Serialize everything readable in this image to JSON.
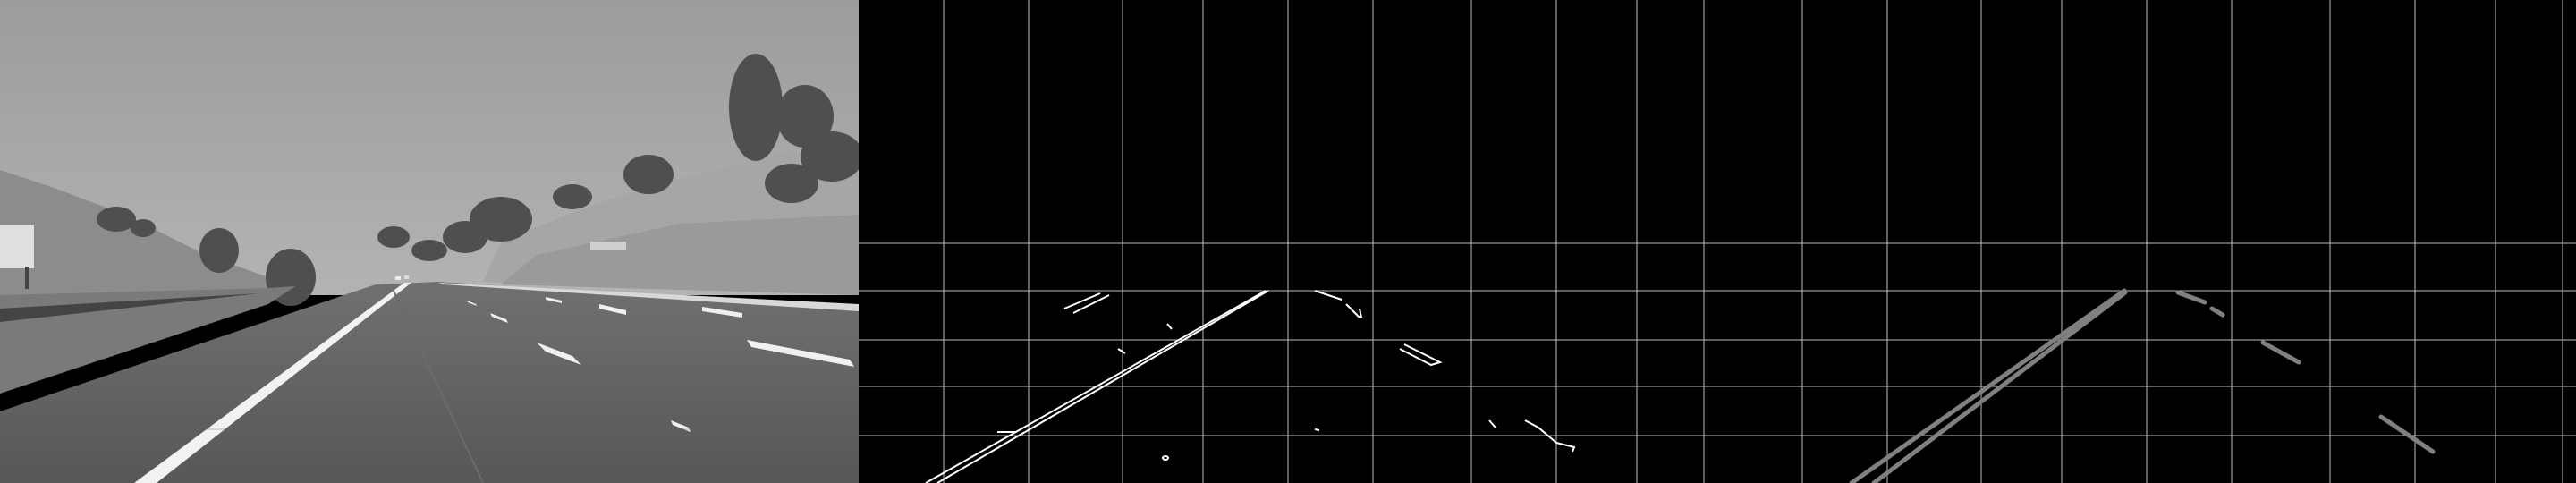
{
  "panels": [
    {
      "id": "road",
      "kind": "grayscale-photo"
    },
    {
      "id": "edges",
      "kind": "canny-edges"
    },
    {
      "id": "lines",
      "kind": "hough-lines"
    }
  ],
  "colors": {
    "sky": "#a0a0a0",
    "hill_left": "#8a8a8a",
    "hill_right": "#9e9e9e",
    "trees": "#555555",
    "road": "#5a5a5a",
    "lane_marking": "#f2f2f2",
    "grid_line": "#bdbdbd",
    "edge_stroke": "#ffffff",
    "hough_stroke": "#808080"
  },
  "grid": {
    "cells_per_panel_vertical": 10,
    "horizontal_line_rows": 5
  }
}
